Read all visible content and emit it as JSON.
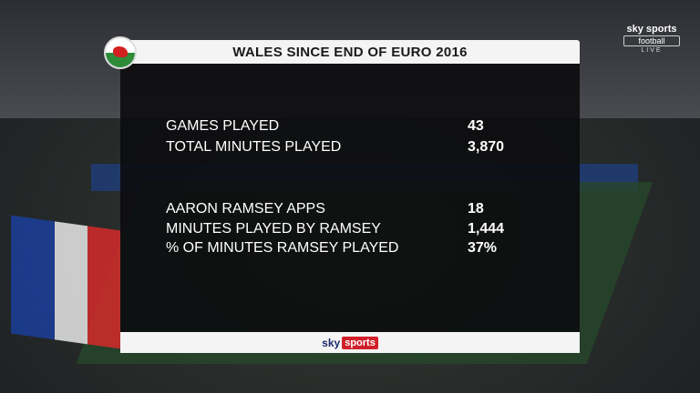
{
  "header": {
    "title": "WALES SINCE END OF EURO 2016"
  },
  "rows": [
    {
      "label": "GAMES PLAYED",
      "value": "43"
    },
    {
      "label": "TOTAL MINUTES PLAYED",
      "value": "3,870"
    },
    {
      "label": "AARON RAMSEY APPS",
      "value": "18"
    },
    {
      "label": "MINUTES PLAYED BY RAMSEY",
      "value": "1,444"
    },
    {
      "label": "% OF MINUTES RAMSEY PLAYED",
      "value": "37%"
    }
  ],
  "footer": {
    "brand": "sky",
    "brand_sub": "sports"
  },
  "channel": {
    "name": "sky sports",
    "sub": "football",
    "status": "LIVE"
  }
}
